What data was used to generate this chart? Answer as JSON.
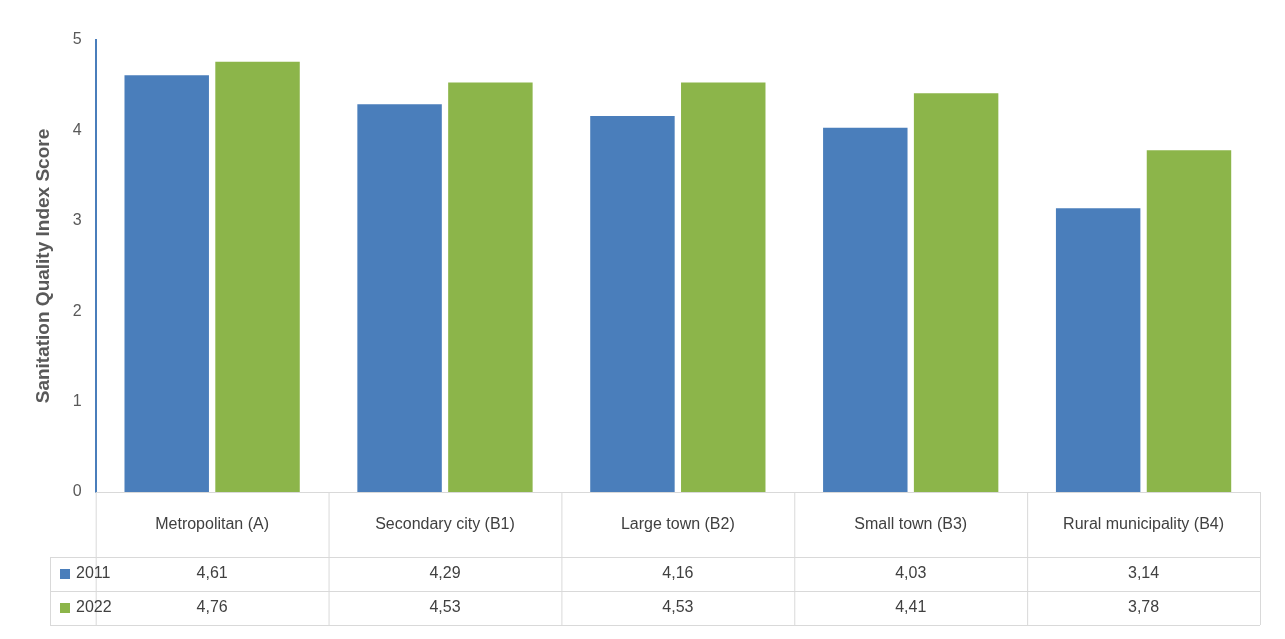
{
  "chart_data": {
    "type": "bar",
    "ylabel": "Sanitation Quality Index Score",
    "categories": [
      "Metropolitan (A)",
      "Secondary city (B1)",
      "Large town (B2)",
      "Small town (B3)",
      "Rural municipality (B4)"
    ],
    "series": [
      {
        "name": "2011",
        "color": "#4a7ebb",
        "values": [
          4.61,
          4.29,
          4.16,
          4.03,
          3.14
        ],
        "value_labels": [
          "4,61",
          "4,29",
          "4,16",
          "4,03",
          "3,14"
        ]
      },
      {
        "name": "2022",
        "color": "#8cb54a",
        "values": [
          4.76,
          4.53,
          4.53,
          4.41,
          3.78
        ],
        "value_labels": [
          "4,76",
          "4,53",
          "4,53",
          "4,41",
          "3,78"
        ]
      }
    ],
    "ylim": [
      0,
      5
    ],
    "yticks": [
      0,
      1,
      2,
      3,
      4,
      5
    ],
    "grid": false,
    "legend": "bottom"
  }
}
